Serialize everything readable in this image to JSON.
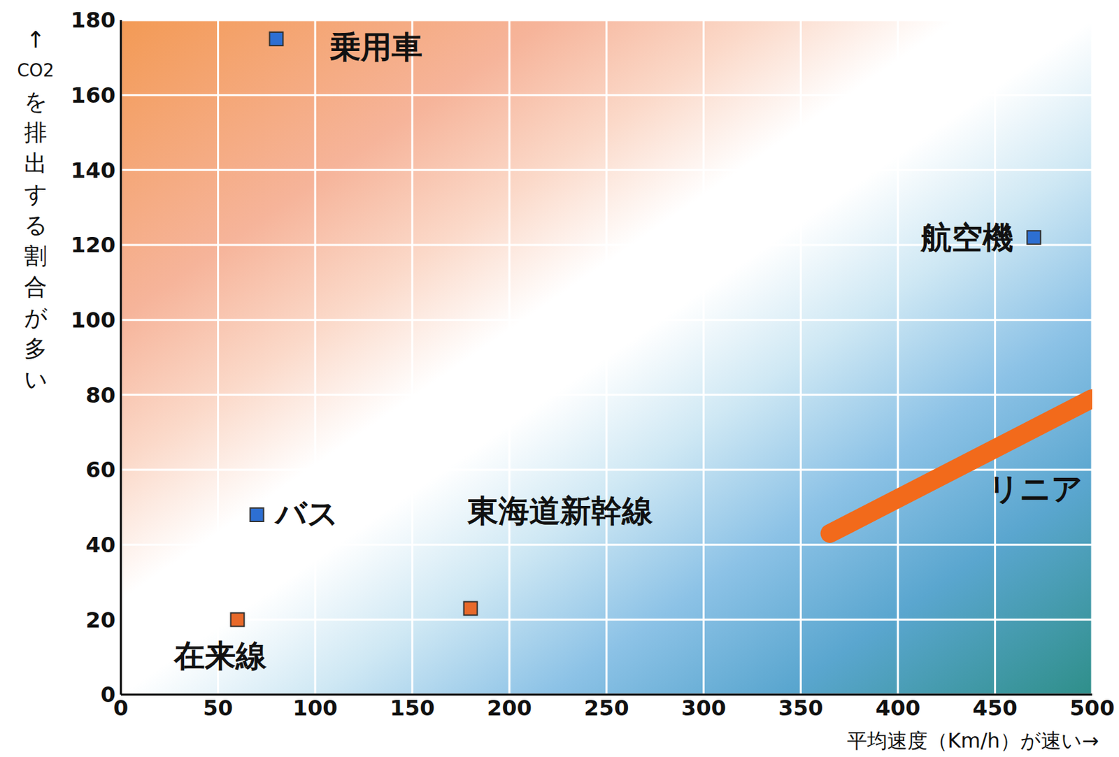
{
  "chart_data": {
    "type": "scatter",
    "x_label": "平均速度（Km/h）が速い→",
    "y_label": "↑CO2を排出する割合が多い",
    "xlim": [
      0,
      500
    ],
    "ylim": [
      0,
      180
    ],
    "xticks": [
      0,
      50,
      100,
      150,
      200,
      250,
      300,
      350,
      400,
      450,
      500
    ],
    "yticks": [
      0,
      20,
      40,
      60,
      80,
      100,
      120,
      140,
      160,
      180
    ],
    "grid": true,
    "series": [
      {
        "name": "乗用車",
        "color": "#2d6fd2",
        "marker": "square",
        "x": [
          80
        ],
        "values": [
          175
        ]
      },
      {
        "name": "バス",
        "color": "#2d6fd2",
        "marker": "square",
        "x": [
          70
        ],
        "values": [
          48
        ]
      },
      {
        "name": "在来線",
        "color": "#e8692a",
        "marker": "square",
        "x": [
          60
        ],
        "values": [
          20
        ]
      },
      {
        "name": "東海道新幹線",
        "color": "#e8692a",
        "marker": "square",
        "x": [
          180
        ],
        "values": [
          23
        ]
      },
      {
        "name": "航空機",
        "color": "#2d6fd2",
        "marker": "square",
        "x": [
          470
        ],
        "values": [
          122
        ]
      },
      {
        "name": "リニア",
        "type": "line",
        "color": "#f26a1b",
        "x": [
          365,
          500
        ],
        "values": [
          43,
          79
        ]
      }
    ]
  }
}
